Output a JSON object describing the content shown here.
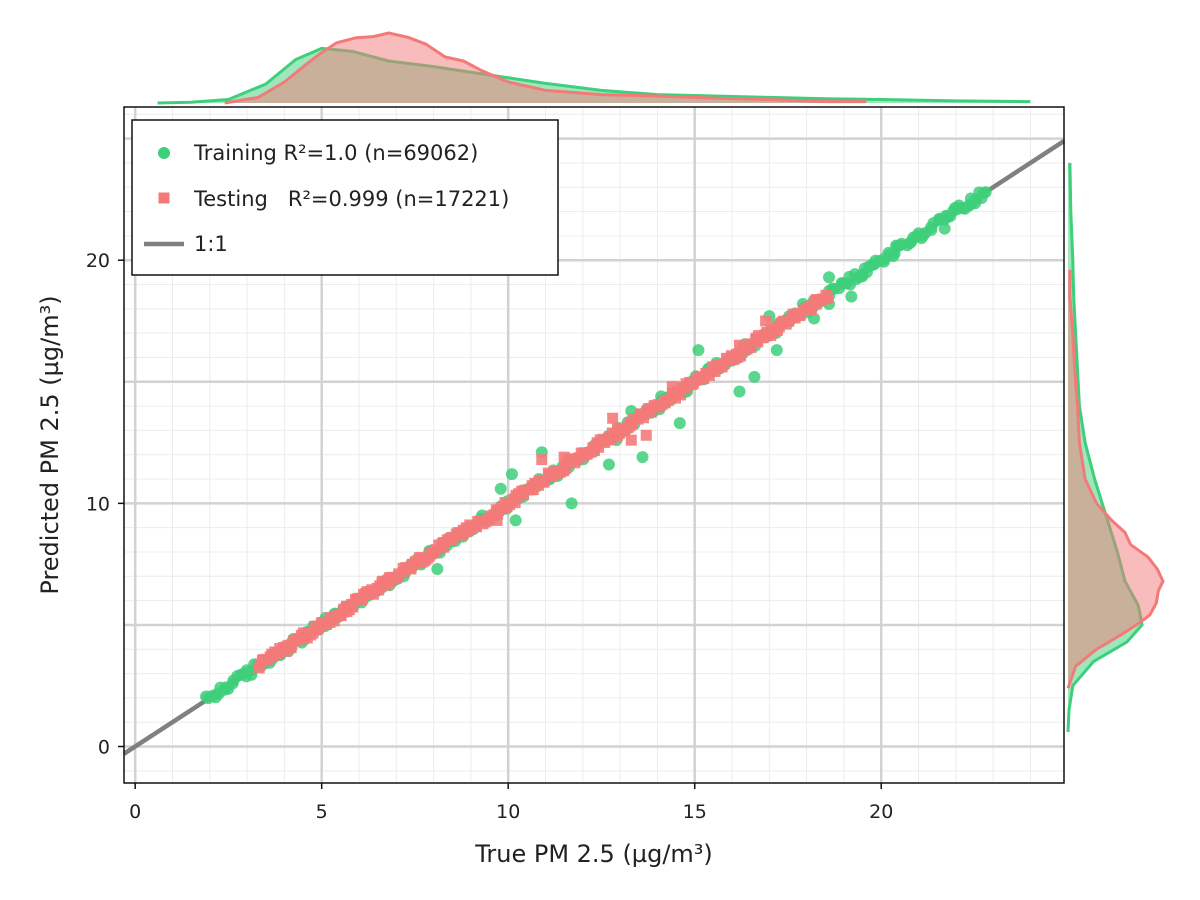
{
  "chart_data": {
    "type": "scatter",
    "xlabel": "True PM 2.5 (µg/m³)",
    "ylabel": "Predicted PM 2.5 (µg/m³)",
    "xlim": [
      -0.3,
      24.9
    ],
    "ylim": [
      -1.5,
      26.3
    ],
    "xticks": [
      0,
      5,
      10,
      15,
      20
    ],
    "yticks": [
      0,
      10,
      20
    ],
    "grid": true,
    "minor_grid": true,
    "legend_position": "top-left",
    "series": [
      {
        "name": "Training",
        "legend_label": "Training R²=1.0 (n=69062)",
        "marker": "circle",
        "color": "#3ecf7a",
        "x_range": [
          1.9,
          22.8
        ],
        "outliers": [
          [
            9.3,
            9.5
          ],
          [
            9.8,
            10.6
          ],
          [
            10.1,
            11.2
          ],
          [
            10.2,
            9.3
          ],
          [
            10.9,
            12.1
          ],
          [
            11.7,
            10.0
          ],
          [
            12.7,
            11.6
          ],
          [
            12.9,
            12.6
          ],
          [
            13.3,
            13.8
          ],
          [
            13.6,
            11.9
          ],
          [
            14.1,
            14.4
          ],
          [
            14.6,
            13.3
          ],
          [
            15.1,
            16.3
          ],
          [
            16.5,
            16.4
          ],
          [
            16.2,
            14.6
          ],
          [
            16.6,
            15.2
          ],
          [
            17.2,
            16.3
          ],
          [
            17.0,
            17.7
          ],
          [
            17.9,
            18.2
          ],
          [
            18.2,
            17.6
          ],
          [
            18.6,
            18.2
          ],
          [
            19.2,
            18.5
          ],
          [
            18.6,
            19.3
          ],
          [
            19.5,
            19.4
          ],
          [
            21.0,
            21.0
          ],
          [
            21.7,
            21.3
          ],
          [
            22.4,
            22.3
          ],
          [
            22.8,
            22.8
          ],
          [
            20.4,
            20.6
          ],
          [
            8.1,
            7.3
          ],
          [
            7.2,
            7.0
          ]
        ]
      },
      {
        "name": "Testing",
        "legend_label": "Testing   R²=0.999 (n=17221)",
        "marker": "square",
        "color": "#f47a7a",
        "x_range": [
          3.3,
          18.6
        ],
        "outliers": [
          [
            12.8,
            13.5
          ],
          [
            13.7,
            12.8
          ],
          [
            14.4,
            14.8
          ],
          [
            11.5,
            11.9
          ],
          [
            13.3,
            12.6
          ],
          [
            16.2,
            16.5
          ],
          [
            16.9,
            17.5
          ],
          [
            9.7,
            9.3
          ],
          [
            10.9,
            11.8
          ]
        ]
      }
    ],
    "reference_line": {
      "name": "1:1",
      "legend_label": "1:1",
      "color": "#808080"
    },
    "marginal_density": {
      "top": [
        {
          "series": "Training",
          "x": [
            0.6,
            1.5,
            2.5,
            3.5,
            4.3,
            5.0,
            5.8,
            6.8,
            8.0,
            9.5,
            11.0,
            12.5,
            14.0,
            15.5,
            17.0,
            18.5,
            20.0,
            22.0,
            24.0
          ],
          "density": [
            0.0,
            0.01,
            0.05,
            0.27,
            0.62,
            0.78,
            0.74,
            0.6,
            0.52,
            0.4,
            0.28,
            0.18,
            0.12,
            0.1,
            0.08,
            0.06,
            0.05,
            0.03,
            0.02
          ]
        },
        {
          "series": "Testing",
          "x": [
            2.4,
            3.3,
            4.0,
            4.6,
            5.0,
            5.4,
            5.9,
            6.4,
            6.8,
            7.3,
            7.8,
            8.3,
            8.8,
            9.3,
            10.0,
            11.0,
            12.5,
            14.0,
            15.5,
            17.0,
            18.5,
            19.6
          ],
          "density": [
            0.0,
            0.08,
            0.3,
            0.56,
            0.72,
            0.86,
            0.93,
            0.95,
            1.0,
            0.94,
            0.84,
            0.66,
            0.6,
            0.46,
            0.3,
            0.18,
            0.12,
            0.1,
            0.07,
            0.05,
            0.02,
            0.02
          ]
        }
      ],
      "right": [
        {
          "series": "Training",
          "y": [
            0.6,
            1.5,
            2.5,
            3.5,
            4.3,
            5.0,
            5.8,
            6.8,
            8.0,
            9.5,
            11.0,
            12.5,
            14.0,
            15.5,
            17.0,
            18.5,
            20.0,
            22.0,
            24.0
          ],
          "density": [
            0.0,
            0.01,
            0.05,
            0.27,
            0.62,
            0.78,
            0.74,
            0.6,
            0.52,
            0.4,
            0.28,
            0.18,
            0.12,
            0.1,
            0.08,
            0.06,
            0.05,
            0.03,
            0.02
          ]
        },
        {
          "series": "Testing",
          "y": [
            2.4,
            3.3,
            4.0,
            4.6,
            5.0,
            5.4,
            5.9,
            6.4,
            6.8,
            7.3,
            7.8,
            8.3,
            8.8,
            9.3,
            10.0,
            11.0,
            12.5,
            14.0,
            15.5,
            17.0,
            18.5,
            19.6
          ],
          "density": [
            0.0,
            0.08,
            0.3,
            0.56,
            0.72,
            0.86,
            0.93,
            0.95,
            1.0,
            0.94,
            0.84,
            0.66,
            0.6,
            0.46,
            0.3,
            0.18,
            0.12,
            0.1,
            0.07,
            0.05,
            0.02,
            0.02
          ]
        }
      ]
    }
  }
}
